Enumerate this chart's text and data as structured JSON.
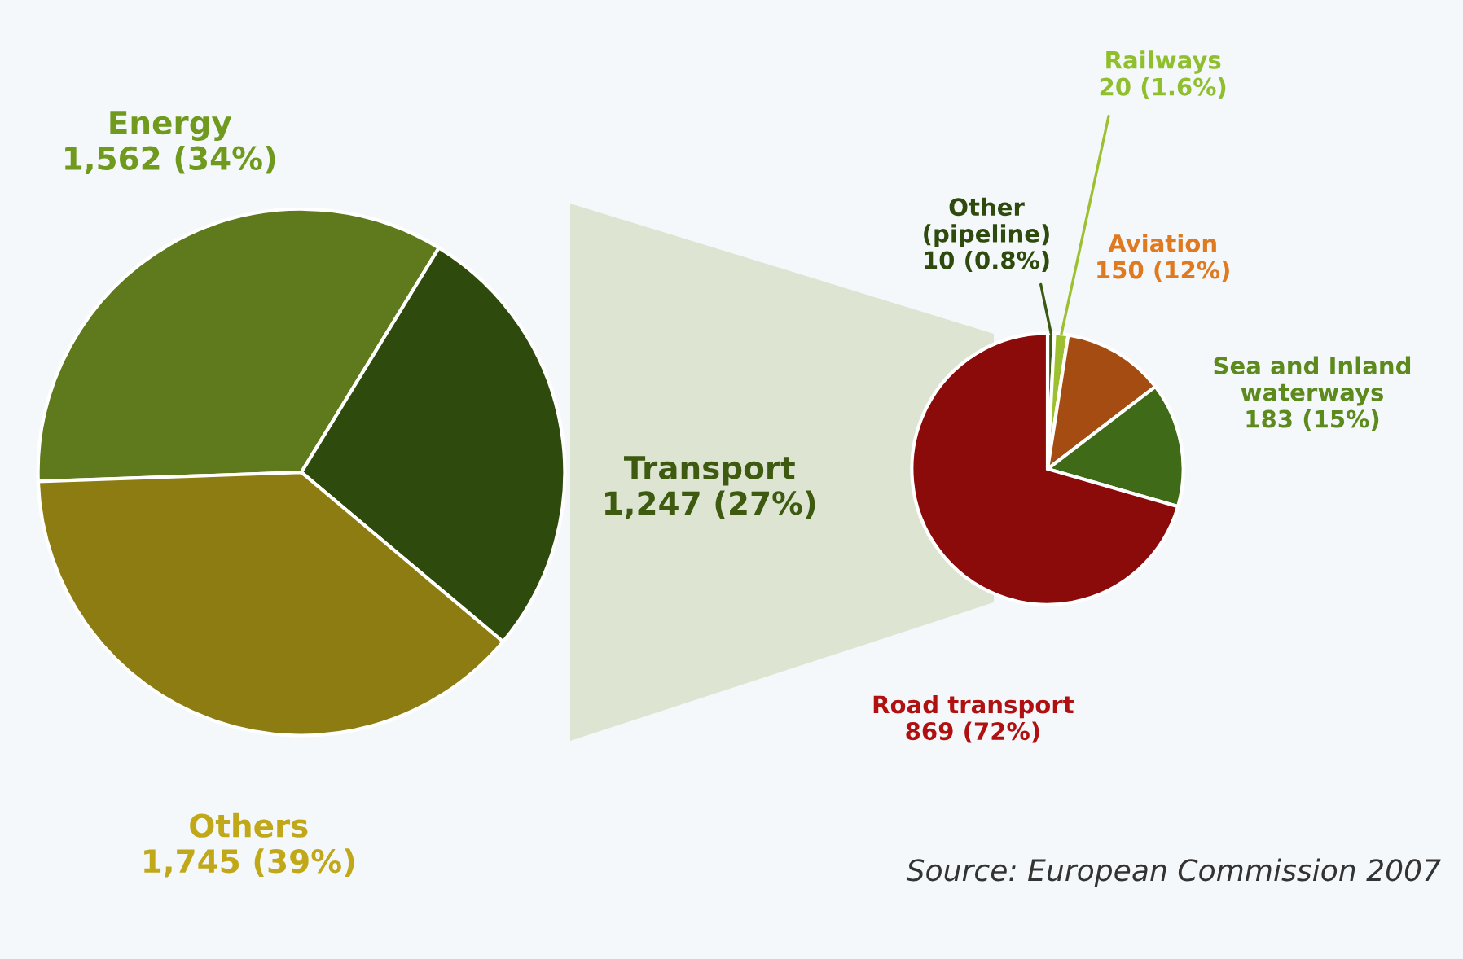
{
  "chart_data": [
    {
      "type": "pie",
      "categories": [
        "Energy",
        "Transport",
        "Others"
      ],
      "values": [
        1562,
        1247,
        1745
      ],
      "colors": [
        "#5e7a1c",
        "#2e4a0c",
        "#8c7c12"
      ],
      "value_labels": [
        "1,562 (34%)",
        "1,247 (27%)",
        "1,745 (39%)"
      ]
    },
    {
      "type": "pie",
      "categories": [
        "Other\n(pipeline)",
        "Railways",
        "Aviation",
        "Sea and Inland\nwaterways",
        "Road transport"
      ],
      "values": [
        10,
        20,
        150,
        183,
        869
      ],
      "colors": [
        "#3a5a12",
        "#9cc030",
        "#a44c12",
        "#3f6a18",
        "#8b0a0a"
      ],
      "value_labels": [
        "10 (0.8%)",
        "20 (1.6%)",
        "150 (12%)",
        "183 (15%)",
        "869 (72%)"
      ],
      "annotations": [
        "Source: European Commission 2007"
      ]
    }
  ]
}
